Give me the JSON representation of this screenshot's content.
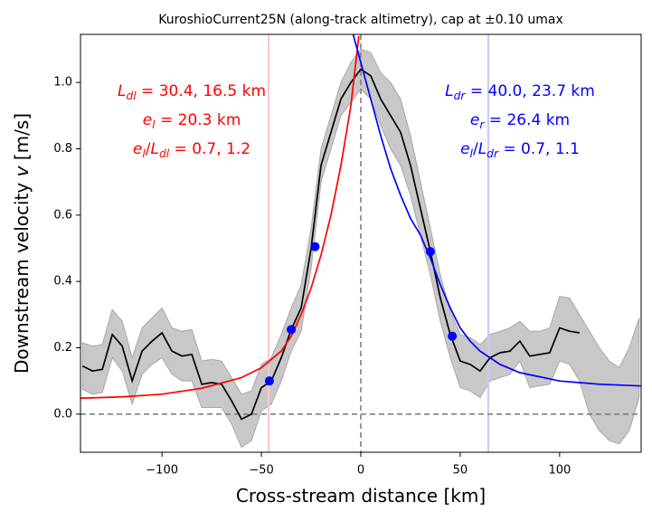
{
  "chart_data": {
    "type": "line",
    "title": "KuroshioCurrent25N (along-track altimetry), cap at ±0.10 umax",
    "xlabel": [
      {
        "t": "Cross-stream distance [km]"
      }
    ],
    "ylabel": [
      {
        "t": "Downstream velocity "
      },
      {
        "t": "v",
        "italic": true
      },
      {
        "t": " [m/s]"
      }
    ],
    "xlim": [
      -141,
      141
    ],
    "ylim": [
      -0.115,
      1.145
    ],
    "xticks": [
      {
        "value": -100,
        "label": "−100"
      },
      {
        "value": -50,
        "label": "−50"
      },
      0,
      50,
      100
    ],
    "yticks": [
      {
        "value": 0,
        "label": "0.0"
      },
      {
        "value": 0.2,
        "label": "0.2"
      },
      {
        "value": 0.4,
        "label": "0.4"
      },
      {
        "value": 0.6,
        "label": "0.6"
      },
      {
        "value": 0.8,
        "label": "0.8"
      },
      {
        "value": 1,
        "label": "1.0"
      }
    ],
    "band": {
      "color": "#c8c8c8",
      "edge": "#a8a8a8",
      "x": [
        -140,
        -135,
        -130,
        -125,
        -120,
        -115,
        -110,
        -105,
        -100,
        -95,
        -90,
        -85,
        -80,
        -75,
        -70,
        -65,
        -60,
        -55,
        -50,
        -45,
        -40,
        -35,
        -30,
        -25,
        -20,
        -15,
        -10,
        -5,
        0,
        5,
        10,
        15,
        20,
        25,
        30,
        35,
        40,
        45,
        50,
        55,
        60,
        65,
        70,
        75,
        80,
        85,
        90,
        95,
        100,
        105,
        110,
        115,
        120,
        125,
        130,
        135,
        140
      ],
      "upper": [
        0.215,
        0.205,
        0.21,
        0.315,
        0.28,
        0.17,
        0.26,
        0.29,
        0.32,
        0.26,
        0.25,
        0.255,
        0.16,
        0.165,
        0.16,
        0.11,
        0.06,
        0.07,
        0.15,
        0.17,
        0.24,
        0.32,
        0.39,
        0.56,
        0.8,
        0.9,
        1.0,
        1.06,
        1.1,
        1.09,
        1.03,
        1.0,
        0.95,
        0.84,
        0.7,
        0.56,
        0.42,
        0.31,
        0.24,
        0.23,
        0.21,
        0.24,
        0.25,
        0.26,
        0.28,
        0.25,
        0.25,
        0.26,
        0.355,
        0.35,
        0.3,
        0.25,
        0.2,
        0.16,
        0.14,
        0.2,
        0.29
      ],
      "lower": [
        0.075,
        0.06,
        0.065,
        0.17,
        0.13,
        0.03,
        0.12,
        0.15,
        0.17,
        0.12,
        0.1,
        0.1,
        0.02,
        0.02,
        0.02,
        -0.03,
        -0.1,
        -0.08,
        0.01,
        0.03,
        0.1,
        0.19,
        0.25,
        0.44,
        0.7,
        0.8,
        0.9,
        0.94,
        0.98,
        0.95,
        0.87,
        0.8,
        0.75,
        0.66,
        0.54,
        0.42,
        0.28,
        0.17,
        0.08,
        0.07,
        0.05,
        0.1,
        0.11,
        0.12,
        0.16,
        0.08,
        0.085,
        0.09,
        0.16,
        0.15,
        0.1,
        0.0,
        -0.05,
        -0.08,
        -0.09,
        -0.05,
        0.05
      ]
    },
    "series": [
      {
        "color": "#000000",
        "x": [
          -140,
          -135,
          -130,
          -125,
          -120,
          -115,
          -110,
          -105,
          -100,
          -95,
          -90,
          -85,
          -80,
          -75,
          -70,
          -65,
          -60,
          -55,
          -50,
          -45,
          -40,
          -35,
          -30,
          -25,
          -20,
          -15,
          -10,
          -5,
          0,
          5,
          10,
          15,
          20,
          25,
          30,
          35,
          40,
          45,
          50,
          55,
          60,
          65,
          70,
          75,
          80,
          85,
          90,
          95,
          100,
          105,
          110
        ],
        "values": [
          0.145,
          0.13,
          0.135,
          0.24,
          0.205,
          0.1,
          0.19,
          0.22,
          0.245,
          0.19,
          0.175,
          0.18,
          0.09,
          0.095,
          0.09,
          0.04,
          -0.015,
          0.0,
          0.08,
          0.1,
          0.17,
          0.255,
          0.32,
          0.5,
          0.75,
          0.85,
          0.95,
          1.0,
          1.04,
          1.02,
          0.95,
          0.9,
          0.85,
          0.75,
          0.62,
          0.49,
          0.35,
          0.24,
          0.16,
          0.15,
          0.13,
          0.17,
          0.185,
          0.19,
          0.22,
          0.175,
          0.18,
          0.185,
          0.26,
          0.25,
          0.245
        ]
      },
      {
        "color": "#ff0000",
        "x": [
          -141,
          -120,
          -100,
          -80,
          -60,
          -50,
          -45,
          -40,
          -35,
          -30,
          -25,
          -20,
          -15,
          -10,
          -5,
          -1
        ],
        "values": [
          0.048,
          0.052,
          0.06,
          0.078,
          0.11,
          0.14,
          0.165,
          0.19,
          0.235,
          0.3,
          0.38,
          0.48,
          0.6,
          0.75,
          0.93,
          1.14
        ]
      },
      {
        "color": "#0000ff",
        "x": [
          -5,
          0,
          5,
          10,
          15,
          20,
          25,
          30,
          35,
          40,
          45,
          50,
          55,
          60,
          70,
          80,
          100,
          120,
          141
        ],
        "values": [
          1.17,
          1.06,
          0.95,
          0.84,
          0.74,
          0.66,
          0.59,
          0.54,
          0.47,
          0.39,
          0.32,
          0.26,
          0.22,
          0.19,
          0.15,
          0.125,
          0.1,
          0.09,
          0.085
        ]
      }
    ],
    "points": {
      "color": "#0000ff",
      "x": [
        -46,
        -35,
        -23,
        35,
        46
      ],
      "values": [
        0.1,
        0.255,
        0.505,
        0.49,
        0.235
      ]
    },
    "vlines": [
      {
        "x": -46.4,
        "color": "#ffc8c8"
      },
      {
        "x": 64.1,
        "color": "#c8c8ff"
      }
    ],
    "ref_lines": {
      "x": 0,
      "y": 0,
      "color": "#808080"
    },
    "annotations": [
      {
        "color": "#ff0000",
        "lines": [
          [
            {
              "t": "L",
              "sub": "dl"
            },
            {
              "t": " = 30.4, 16.5 km"
            }
          ],
          [
            {
              "t": "e",
              "sub": "l"
            },
            {
              "t": " = 20.3 km"
            }
          ],
          [
            {
              "t": "e",
              "sub": "l"
            },
            {
              "t": "/"
            },
            {
              "t": "L",
              "sub": "dl"
            },
            {
              "t": " = 0.7, 1.2"
            }
          ]
        ]
      },
      {
        "color": "#0000ff",
        "lines": [
          [
            {
              "t": "L",
              "sub": "dr"
            },
            {
              "t": " = 40.0, 23.7 km"
            }
          ],
          [
            {
              "t": "e",
              "sub": "r"
            },
            {
              "t": " = 26.4 km"
            }
          ],
          [
            {
              "t": "e",
              "sub": "l"
            },
            {
              "t": "/"
            },
            {
              "t": "L",
              "sub": "dr"
            },
            {
              "t": " = 0.7, 1.1"
            }
          ]
        ]
      }
    ]
  }
}
